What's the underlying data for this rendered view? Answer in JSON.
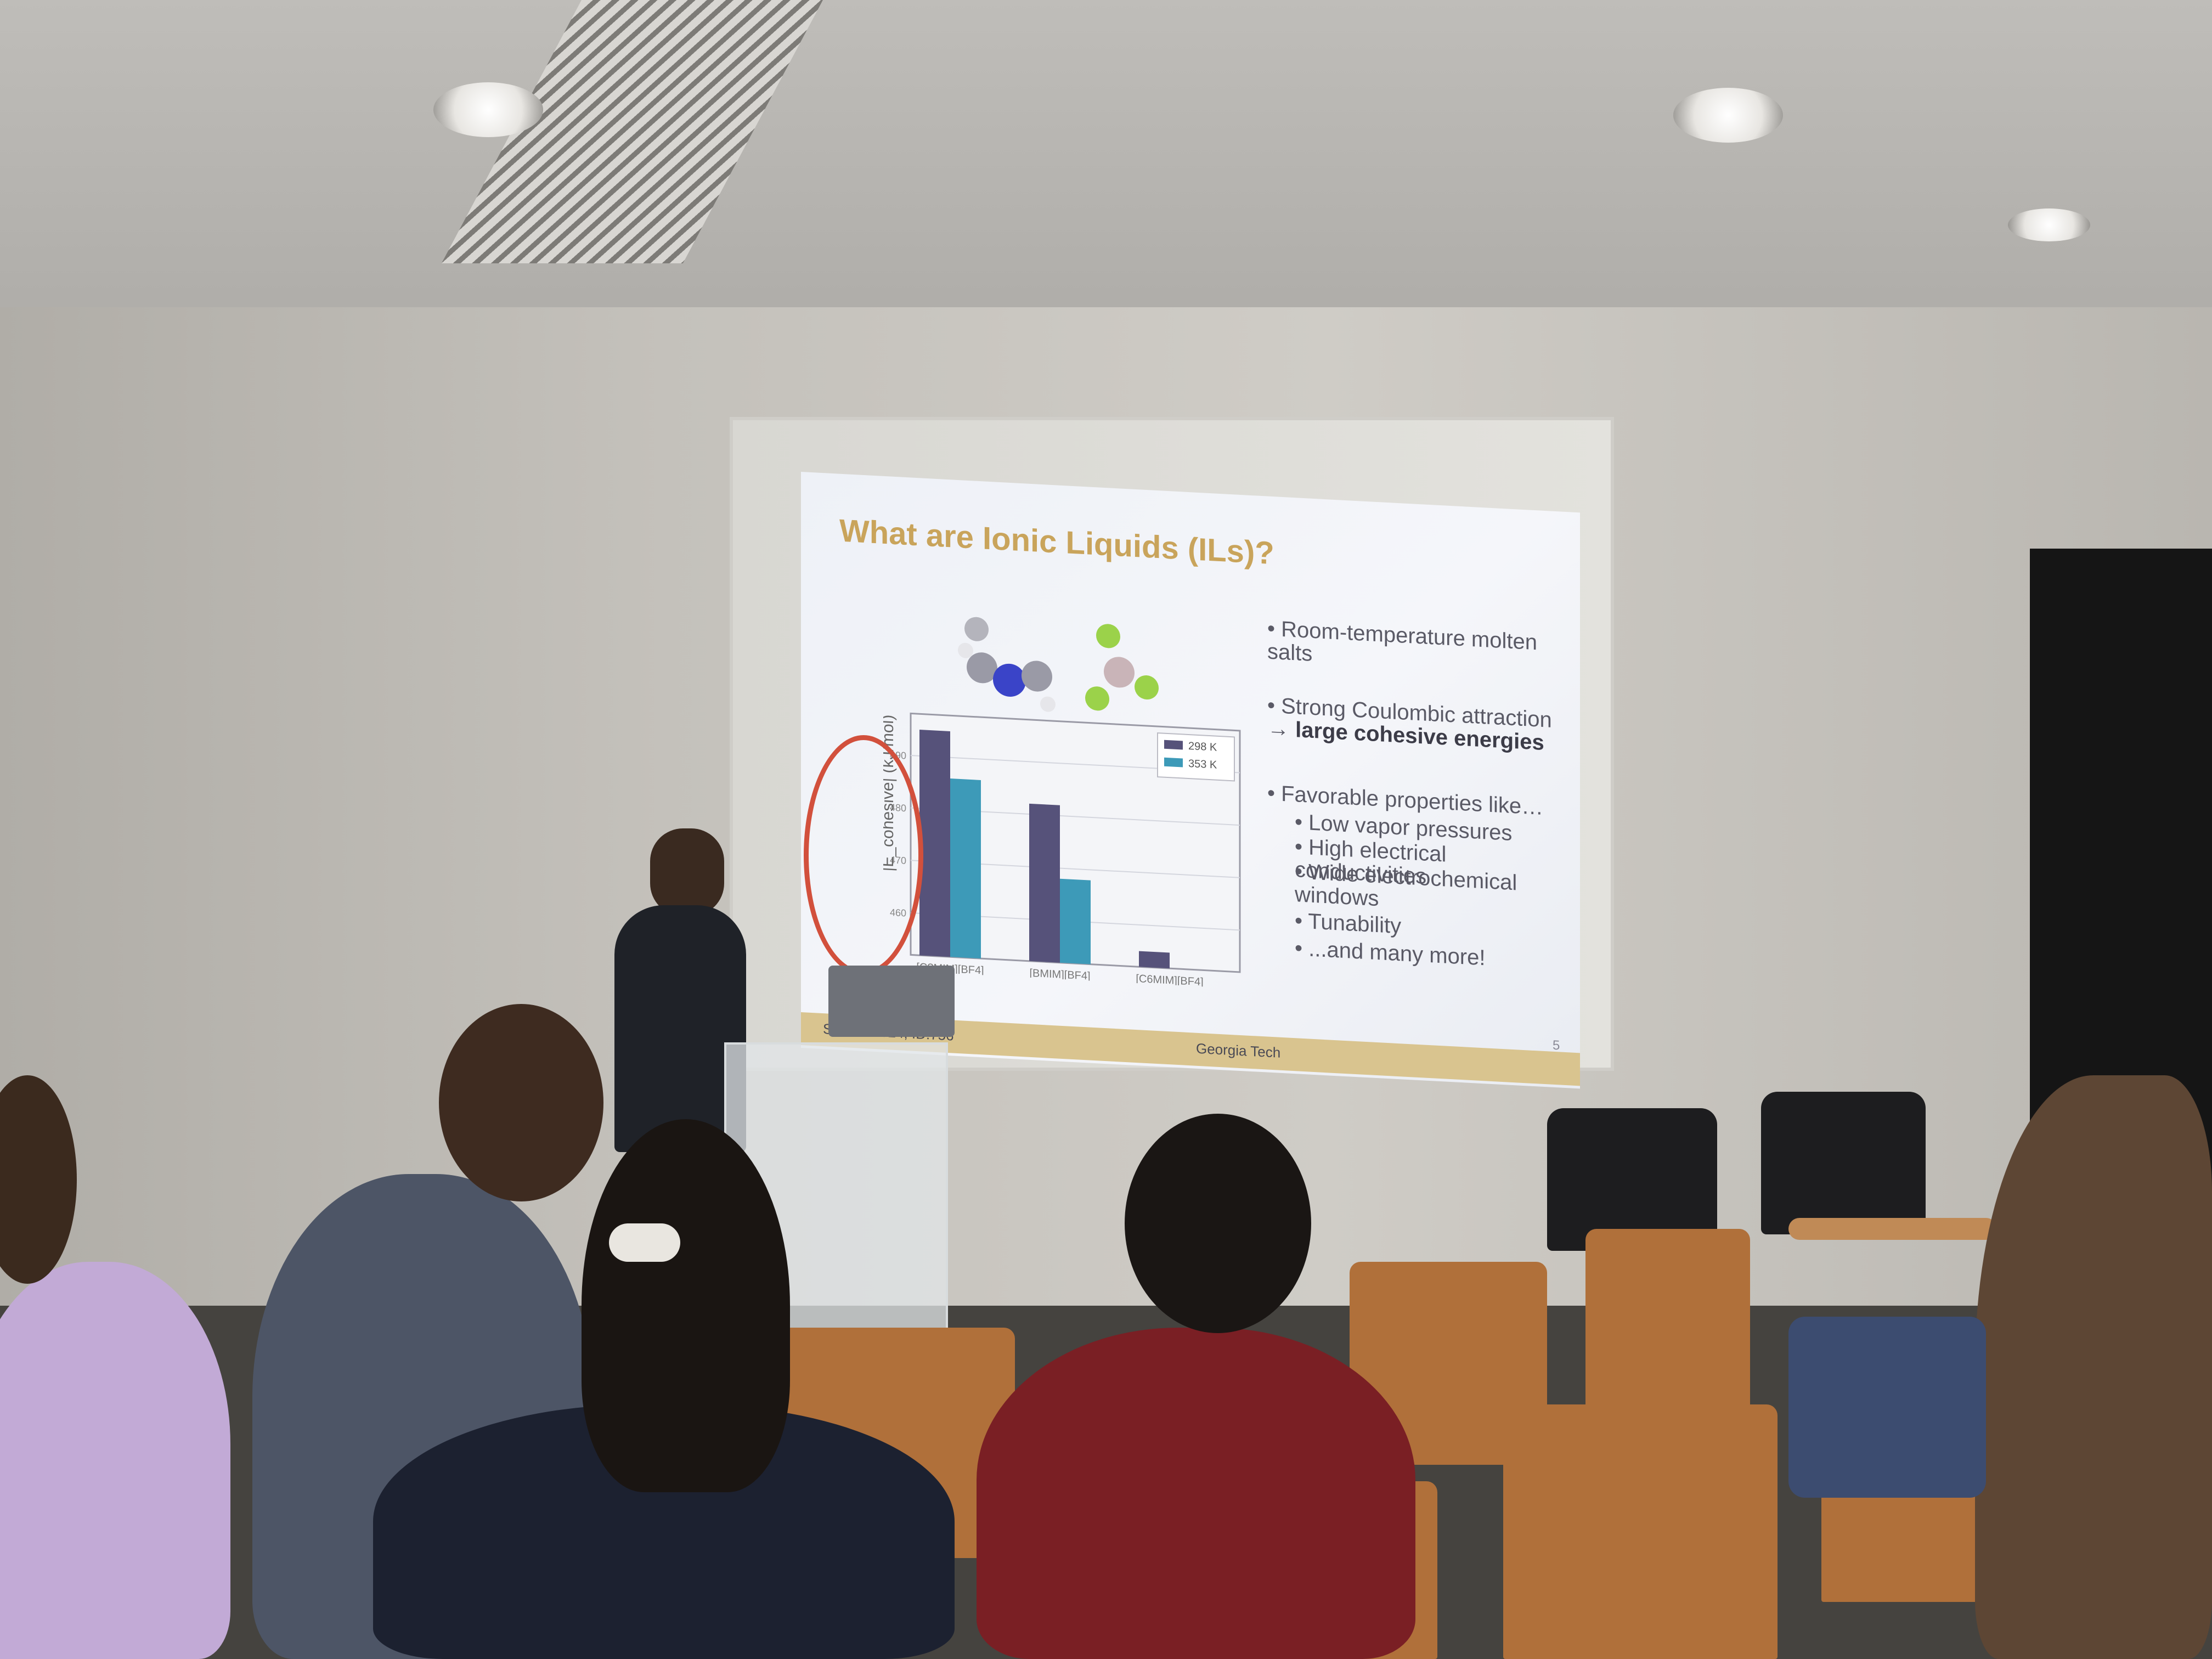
{
  "slide": {
    "title": "What are Ionic Liquids (ILs)?",
    "bullets": [
      {
        "text": "Room-temperature molten salts",
        "bold": ""
      },
      {
        "text": "Strong Coulombic attraction →",
        "bold": "large cohesive energies"
      },
      {
        "text": "Favorable properties like…",
        "bold": ""
      }
    ],
    "sub_bullets": [
      "Low vapor pressures",
      "High electrical conductivities",
      "Wide electrochemical windows",
      "Tunability",
      "...and many more!"
    ],
    "footer_left": "S... PC 2024, ID:756",
    "footer_center": "Georgia Tech",
    "slide_number": "5"
  },
  "chart_data": {
    "type": "bar",
    "ylabel": "|E_cohesive| (kJ/mol)",
    "categories": [
      "[C?MIM][BF4]",
      "[BMIM][BF4]",
      "[C6MIM][BF4]"
    ],
    "series": [
      {
        "name": "298 K",
        "color": "#56527a",
        "values": [
          495,
          482,
          455
        ]
      },
      {
        "name": "353 K",
        "color": "#3d9ab8",
        "values": [
          486,
          468,
          452
        ]
      }
    ],
    "ylim": [
      452,
      498
    ],
    "yticks": [
      460,
      470,
      480,
      490
    ],
    "legend": "top-right",
    "grid": true
  },
  "colors": {
    "title": "#c9a45b",
    "annotation": "#d2503c",
    "footer": "#d9c48f"
  }
}
